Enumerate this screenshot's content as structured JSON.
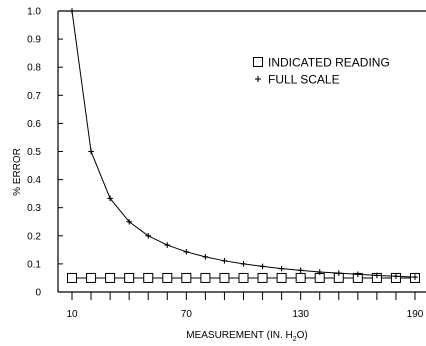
{
  "chart_data": {
    "type": "line",
    "xlabel": "MEASUREMENT (IN. H",
    "xlabel_sub": "2",
    "xlabel_end": "O)",
    "ylabel": "% ERROR",
    "xlim": [
      10,
      196
    ],
    "ylim": [
      0,
      1.0
    ],
    "x_ticks": [
      10,
      70,
      130,
      190
    ],
    "x_tick_labels": [
      "10",
      "70",
      "130",
      "190"
    ],
    "x_minor_ticks": [
      10,
      20,
      30,
      40,
      50,
      60,
      70,
      80,
      90,
      100,
      110,
      120,
      130,
      140,
      150,
      160,
      170,
      180,
      190
    ],
    "y_ticks": [
      0,
      0.1,
      0.2,
      0.3,
      0.4,
      0.5,
      0.6,
      0.7,
      0.8,
      0.9,
      1.0
    ],
    "y_tick_labels": [
      "0",
      "0.1",
      "0.2",
      "0.3",
      "0.4",
      "0.5",
      "0.6",
      "0.7",
      "0.8",
      "0.9",
      "1.0"
    ],
    "grid": false,
    "legend_position": "upper-right",
    "series": [
      {
        "name": "INDICATED READING",
        "marker": "square",
        "x": [
          10,
          20,
          30,
          40,
          50,
          60,
          70,
          80,
          90,
          100,
          110,
          120,
          130,
          140,
          150,
          160,
          170,
          180,
          190
        ],
        "y": [
          0.05,
          0.05,
          0.05,
          0.05,
          0.05,
          0.05,
          0.05,
          0.05,
          0.05,
          0.05,
          0.05,
          0.05,
          0.05,
          0.05,
          0.05,
          0.05,
          0.05,
          0.05,
          0.05
        ]
      },
      {
        "name": "FULL SCALE",
        "marker": "plus",
        "x": [
          10,
          20,
          30,
          40,
          50,
          60,
          70,
          80,
          90,
          100,
          110,
          120,
          130,
          140,
          150,
          160,
          170,
          180,
          190
        ],
        "y": [
          1.0,
          0.5,
          0.333,
          0.25,
          0.2,
          0.167,
          0.143,
          0.125,
          0.111,
          0.1,
          0.091,
          0.083,
          0.077,
          0.071,
          0.067,
          0.063,
          0.059,
          0.056,
          0.053
        ]
      }
    ]
  }
}
